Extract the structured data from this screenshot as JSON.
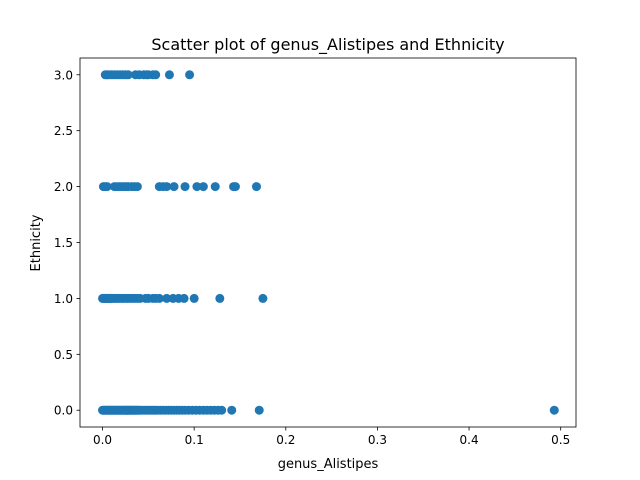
{
  "chart_data": {
    "type": "scatter",
    "title": "Scatter plot of genus_Alistipes and Ethnicity",
    "xlabel": "genus_Alistipes",
    "ylabel": "Ethnicity",
    "xlim": [
      -0.0246,
      0.5167
    ],
    "ylim": [
      -0.15,
      3.15
    ],
    "xticks": [
      0.0,
      0.1,
      0.2,
      0.3,
      0.4,
      0.5
    ],
    "xtick_labels": [
      "0.0",
      "0.1",
      "0.2",
      "0.3",
      "0.4",
      "0.5"
    ],
    "yticks": [
      0.0,
      0.5,
      1.0,
      1.5,
      2.0,
      2.5,
      3.0
    ],
    "ytick_labels": [
      "0.0",
      "0.5",
      "1.0",
      "1.5",
      "2.0",
      "2.5",
      "3.0"
    ],
    "grid": false,
    "marker_color": "#1f77b4",
    "series": [
      {
        "points": [
          [
            0.003,
            3
          ],
          [
            0.005,
            3
          ],
          [
            0.007,
            3
          ],
          [
            0.01,
            3
          ],
          [
            0.013,
            3
          ],
          [
            0.016,
            3
          ],
          [
            0.019,
            3
          ],
          [
            0.022,
            3
          ],
          [
            0.025,
            3
          ],
          [
            0.028,
            3
          ],
          [
            0.036,
            3
          ],
          [
            0.04,
            3
          ],
          [
            0.045,
            3
          ],
          [
            0.048,
            3
          ],
          [
            0.05,
            3
          ],
          [
            0.055,
            3
          ],
          [
            0.058,
            3
          ],
          [
            0.073,
            3
          ],
          [
            0.095,
            3
          ],
          [
            0.001,
            2
          ],
          [
            0.003,
            2
          ],
          [
            0.005,
            2
          ],
          [
            0.013,
            2
          ],
          [
            0.016,
            2
          ],
          [
            0.019,
            2
          ],
          [
            0.022,
            2
          ],
          [
            0.025,
            2
          ],
          [
            0.028,
            2
          ],
          [
            0.032,
            2
          ],
          [
            0.035,
            2
          ],
          [
            0.038,
            2
          ],
          [
            0.062,
            2
          ],
          [
            0.066,
            2
          ],
          [
            0.07,
            2
          ],
          [
            0.078,
            2
          ],
          [
            0.09,
            2
          ],
          [
            0.103,
            2
          ],
          [
            0.11,
            2
          ],
          [
            0.123,
            2
          ],
          [
            0.143,
            2
          ],
          [
            0.145,
            2
          ],
          [
            0.168,
            2
          ],
          [
            0.0,
            1
          ],
          [
            0.001,
            1
          ],
          [
            0.002,
            1
          ],
          [
            0.003,
            1
          ],
          [
            0.004,
            1
          ],
          [
            0.005,
            1
          ],
          [
            0.006,
            1
          ],
          [
            0.007,
            1
          ],
          [
            0.008,
            1
          ],
          [
            0.009,
            1
          ],
          [
            0.01,
            1
          ],
          [
            0.012,
            1
          ],
          [
            0.014,
            1
          ],
          [
            0.016,
            1
          ],
          [
            0.018,
            1
          ],
          [
            0.021,
            1
          ],
          [
            0.023,
            1
          ],
          [
            0.026,
            1
          ],
          [
            0.029,
            1
          ],
          [
            0.032,
            1
          ],
          [
            0.035,
            1
          ],
          [
            0.038,
            1
          ],
          [
            0.041,
            1
          ],
          [
            0.047,
            1
          ],
          [
            0.05,
            1
          ],
          [
            0.055,
            1
          ],
          [
            0.058,
            1
          ],
          [
            0.062,
            1
          ],
          [
            0.07,
            1
          ],
          [
            0.077,
            1
          ],
          [
            0.083,
            1
          ],
          [
            0.089,
            1
          ],
          [
            0.1,
            1
          ],
          [
            0.128,
            1
          ],
          [
            0.175,
            1
          ],
          [
            0.0,
            0
          ],
          [
            0.001,
            0
          ],
          [
            0.002,
            0
          ],
          [
            0.003,
            0
          ],
          [
            0.004,
            0
          ],
          [
            0.005,
            0
          ],
          [
            0.006,
            0
          ],
          [
            0.007,
            0
          ],
          [
            0.008,
            0
          ],
          [
            0.009,
            0
          ],
          [
            0.01,
            0
          ],
          [
            0.011,
            0
          ],
          [
            0.012,
            0
          ],
          [
            0.013,
            0
          ],
          [
            0.014,
            0
          ],
          [
            0.015,
            0
          ],
          [
            0.016,
            0
          ],
          [
            0.017,
            0
          ],
          [
            0.018,
            0
          ],
          [
            0.019,
            0
          ],
          [
            0.02,
            0
          ],
          [
            0.021,
            0
          ],
          [
            0.022,
            0
          ],
          [
            0.023,
            0
          ],
          [
            0.024,
            0
          ],
          [
            0.025,
            0
          ],
          [
            0.026,
            0
          ],
          [
            0.027,
            0
          ],
          [
            0.028,
            0
          ],
          [
            0.029,
            0
          ],
          [
            0.03,
            0
          ],
          [
            0.031,
            0
          ],
          [
            0.032,
            0
          ],
          [
            0.033,
            0
          ],
          [
            0.034,
            0
          ],
          [
            0.035,
            0
          ],
          [
            0.036,
            0
          ],
          [
            0.037,
            0
          ],
          [
            0.038,
            0
          ],
          [
            0.039,
            0
          ],
          [
            0.04,
            0
          ],
          [
            0.042,
            0
          ],
          [
            0.044,
            0
          ],
          [
            0.046,
            0
          ],
          [
            0.048,
            0
          ],
          [
            0.05,
            0
          ],
          [
            0.052,
            0
          ],
          [
            0.054,
            0
          ],
          [
            0.056,
            0
          ],
          [
            0.058,
            0
          ],
          [
            0.06,
            0
          ],
          [
            0.063,
            0
          ],
          [
            0.066,
            0
          ],
          [
            0.069,
            0
          ],
          [
            0.072,
            0
          ],
          [
            0.075,
            0
          ],
          [
            0.078,
            0
          ],
          [
            0.081,
            0
          ],
          [
            0.084,
            0
          ],
          [
            0.087,
            0
          ],
          [
            0.09,
            0
          ],
          [
            0.094,
            0
          ],
          [
            0.098,
            0
          ],
          [
            0.102,
            0
          ],
          [
            0.106,
            0
          ],
          [
            0.11,
            0
          ],
          [
            0.114,
            0
          ],
          [
            0.118,
            0
          ],
          [
            0.122,
            0
          ],
          [
            0.126,
            0
          ],
          [
            0.13,
            0
          ],
          [
            0.141,
            0
          ],
          [
            0.171,
            0
          ],
          [
            0.493,
            0
          ]
        ]
      }
    ]
  }
}
